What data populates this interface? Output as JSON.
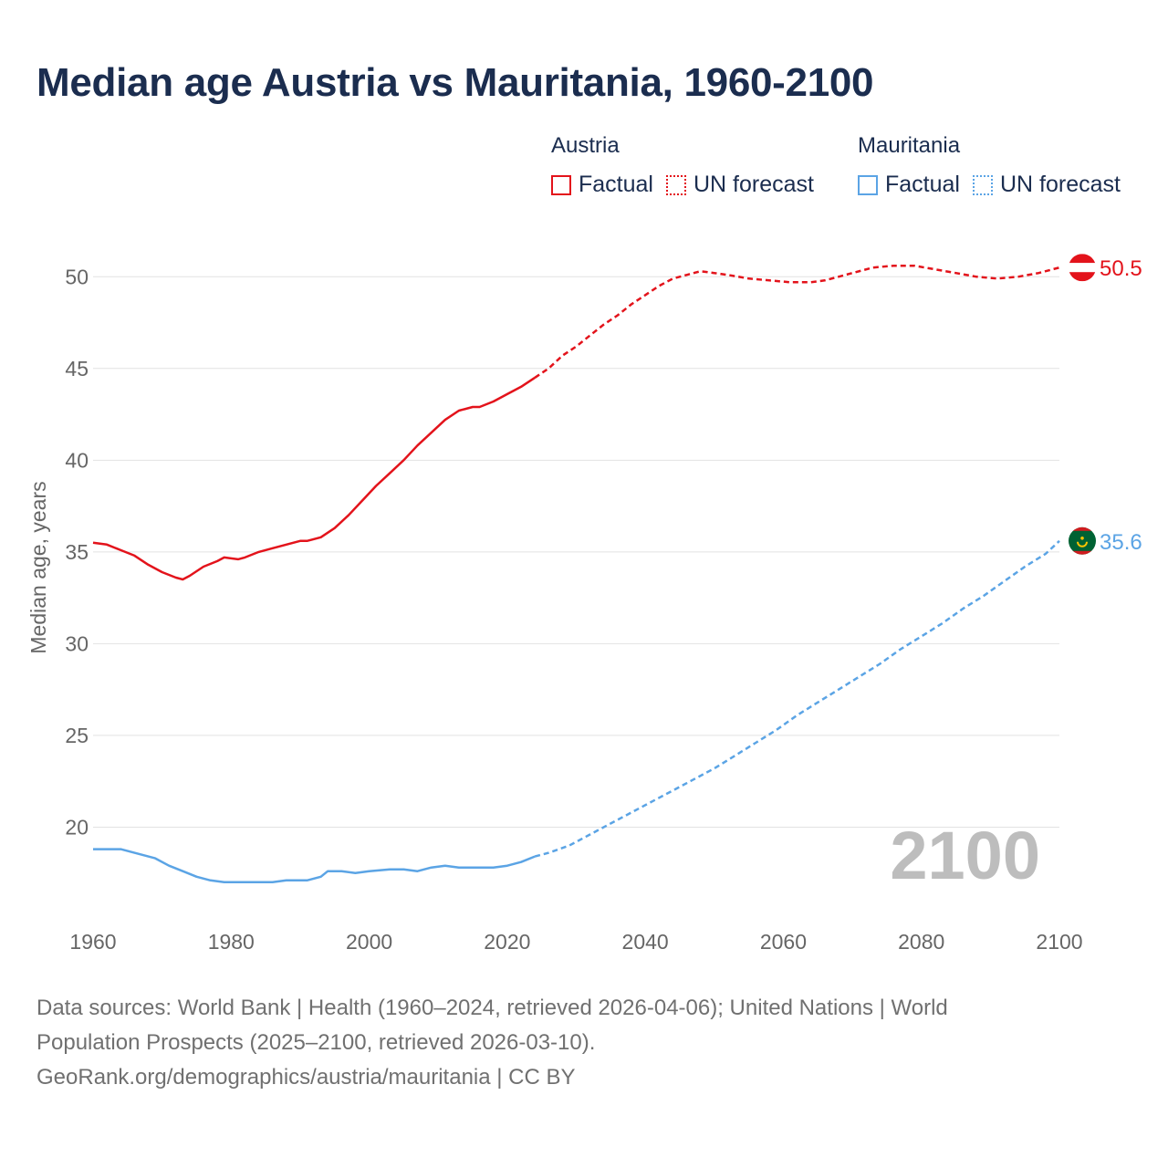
{
  "title": "Median age Austria vs Mauritania, 1960-2100",
  "legend": {
    "groups": [
      {
        "name": "Austria",
        "color": "#e3131b",
        "items": [
          "Factual",
          "UN forecast"
        ]
      },
      {
        "name": "Mauritania",
        "color": "#5ba4e5",
        "items": [
          "Factual",
          "UN forecast"
        ]
      }
    ]
  },
  "year_watermark": "2100",
  "footer": {
    "line1": "Data sources: World Bank | Health (1960–2024, retrieved 2026-04-06); United Nations | World",
    "line2": "Population Prospects (2025–2100, retrieved 2026-03-10).",
    "line3": "GeoRank.org/demographics/austria/mauritania | CC BY"
  },
  "chart_data": {
    "type": "line",
    "title": "Median age Austria vs Mauritania, 1960-2100",
    "xlabel": "",
    "ylabel": "Median age, years",
    "xlim": [
      1960,
      2100
    ],
    "ylim": [
      15,
      52.5
    ],
    "grid": true,
    "legend_position": "top-right",
    "x_ticks": [
      1960,
      1980,
      2000,
      2020,
      2040,
      2060,
      2080,
      2100
    ],
    "y_ticks": [
      20,
      25,
      30,
      35,
      40,
      45,
      50
    ],
    "forecast_start": 2024,
    "series": [
      {
        "name": "Austria",
        "color": "#e3131b",
        "end_label": "50.5",
        "flag": "austria",
        "points": [
          [
            1960,
            35.5
          ],
          [
            1962,
            35.4
          ],
          [
            1964,
            35.1
          ],
          [
            1966,
            34.8
          ],
          [
            1968,
            34.3
          ],
          [
            1970,
            33.9
          ],
          [
            1972,
            33.6
          ],
          [
            1973,
            33.5
          ],
          [
            1974,
            33.7
          ],
          [
            1976,
            34.2
          ],
          [
            1978,
            34.5
          ],
          [
            1979,
            34.7
          ],
          [
            1981,
            34.6
          ],
          [
            1982,
            34.7
          ],
          [
            1984,
            35.0
          ],
          [
            1986,
            35.2
          ],
          [
            1988,
            35.4
          ],
          [
            1990,
            35.6
          ],
          [
            1991,
            35.6
          ],
          [
            1992,
            35.7
          ],
          [
            1993,
            35.8
          ],
          [
            1995,
            36.3
          ],
          [
            1997,
            37.0
          ],
          [
            1999,
            37.8
          ],
          [
            2001,
            38.6
          ],
          [
            2003,
            39.3
          ],
          [
            2005,
            40.0
          ],
          [
            2007,
            40.8
          ],
          [
            2009,
            41.5
          ],
          [
            2011,
            42.2
          ],
          [
            2013,
            42.7
          ],
          [
            2015,
            42.9
          ],
          [
            2016,
            42.9
          ],
          [
            2018,
            43.2
          ],
          [
            2020,
            43.6
          ],
          [
            2022,
            44.0
          ],
          [
            2024,
            44.5
          ],
          [
            2026,
            45.0
          ],
          [
            2028,
            45.7
          ],
          [
            2030,
            46.2
          ],
          [
            2032,
            46.8
          ],
          [
            2034,
            47.4
          ],
          [
            2036,
            47.9
          ],
          [
            2038,
            48.5
          ],
          [
            2040,
            49.0
          ],
          [
            2042,
            49.5
          ],
          [
            2044,
            49.9
          ],
          [
            2046,
            50.1
          ],
          [
            2048,
            50.3
          ],
          [
            2050,
            50.2
          ],
          [
            2052,
            50.1
          ],
          [
            2055,
            49.9
          ],
          [
            2058,
            49.8
          ],
          [
            2061,
            49.7
          ],
          [
            2064,
            49.7
          ],
          [
            2066,
            49.8
          ],
          [
            2068,
            50.0
          ],
          [
            2070,
            50.2
          ],
          [
            2073,
            50.5
          ],
          [
            2076,
            50.6
          ],
          [
            2079,
            50.6
          ],
          [
            2082,
            50.4
          ],
          [
            2085,
            50.2
          ],
          [
            2088,
            50.0
          ],
          [
            2091,
            49.9
          ],
          [
            2094,
            50.0
          ],
          [
            2097,
            50.2
          ],
          [
            2100,
            50.5
          ]
        ]
      },
      {
        "name": "Mauritania",
        "color": "#5ba4e5",
        "end_label": "35.6",
        "flag": "mauritania",
        "points": [
          [
            1960,
            18.8
          ],
          [
            1964,
            18.8
          ],
          [
            1966,
            18.6
          ],
          [
            1969,
            18.3
          ],
          [
            1971,
            17.9
          ],
          [
            1973,
            17.6
          ],
          [
            1975,
            17.3
          ],
          [
            1977,
            17.1
          ],
          [
            1979,
            17.0
          ],
          [
            1983,
            17.0
          ],
          [
            1986,
            17.0
          ],
          [
            1988,
            17.1
          ],
          [
            1991,
            17.1
          ],
          [
            1993,
            17.3
          ],
          [
            1994,
            17.6
          ],
          [
            1996,
            17.6
          ],
          [
            1998,
            17.5
          ],
          [
            2000,
            17.6
          ],
          [
            2003,
            17.7
          ],
          [
            2005,
            17.7
          ],
          [
            2007,
            17.6
          ],
          [
            2009,
            17.8
          ],
          [
            2011,
            17.9
          ],
          [
            2013,
            17.8
          ],
          [
            2018,
            17.8
          ],
          [
            2020,
            17.9
          ],
          [
            2022,
            18.1
          ],
          [
            2024,
            18.4
          ],
          [
            2026,
            18.6
          ],
          [
            2029,
            19.0
          ],
          [
            2032,
            19.6
          ],
          [
            2035,
            20.2
          ],
          [
            2038,
            20.8
          ],
          [
            2041,
            21.4
          ],
          [
            2044,
            22.0
          ],
          [
            2047,
            22.6
          ],
          [
            2050,
            23.2
          ],
          [
            2053,
            23.9
          ],
          [
            2056,
            24.6
          ],
          [
            2059,
            25.3
          ],
          [
            2062,
            26.1
          ],
          [
            2065,
            26.8
          ],
          [
            2068,
            27.5
          ],
          [
            2071,
            28.2
          ],
          [
            2074,
            28.9
          ],
          [
            2077,
            29.7
          ],
          [
            2080,
            30.4
          ],
          [
            2083,
            31.1
          ],
          [
            2086,
            31.9
          ],
          [
            2089,
            32.6
          ],
          [
            2092,
            33.4
          ],
          [
            2095,
            34.2
          ],
          [
            2098,
            34.9
          ],
          [
            2100,
            35.6
          ]
        ]
      }
    ]
  }
}
